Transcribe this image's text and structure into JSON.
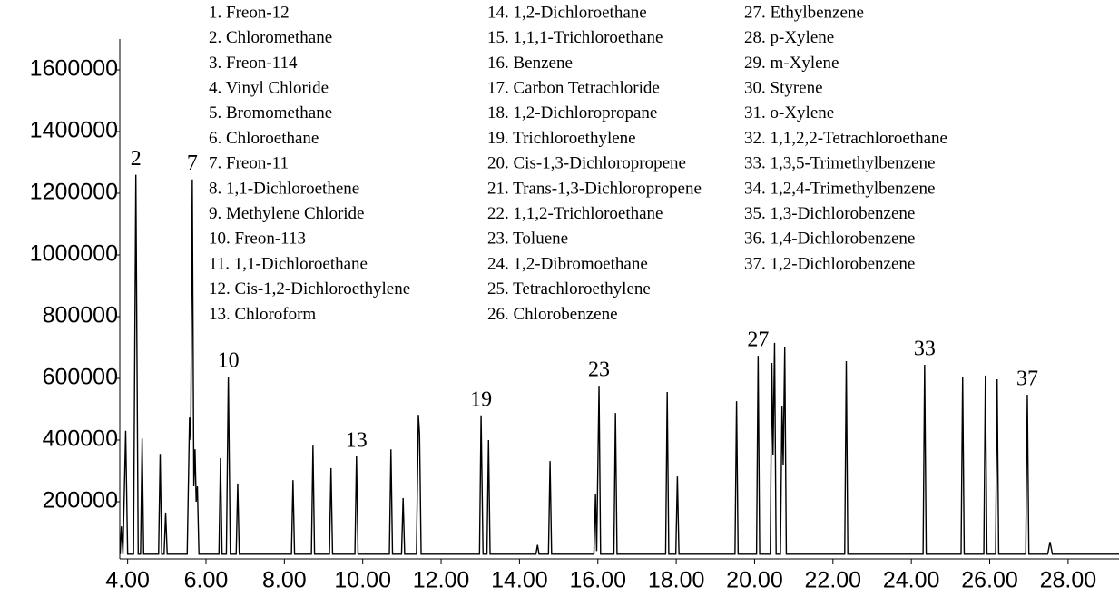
{
  "chart_data": {
    "type": "line",
    "compounds": [
      "1. Freon-12",
      "2. Chloromethane",
      "3. Freon-114",
      "4. Vinyl Chloride",
      "5. Bromomethane",
      "6. Chloroethane",
      "7. Freon-11",
      "8. 1,1-Dichloroethene",
      "9. Methylene Chloride",
      "10. Freon-113",
      "11. 1,1-Dichloroethane",
      "12. Cis-1,2-Dichloroethylene",
      "13. Chloroform",
      "14. 1,2-Dichloroethane",
      "15. 1,1,1-Trichloroethane",
      "16. Benzene",
      "17. Carbon Tetrachloride",
      "18. 1,2-Dichloropropane",
      "19. Trichloroethylene",
      "20. Cis-1,3-Dichloropropene",
      "21. Trans-1,3-Dichloropropene",
      "22. 1,1,2-Trichloroethane",
      "23. Toluene",
      "24. 1,2-Dibromoethane",
      "25. Tetrachloroethylene",
      "26. Chlorobenzene",
      "27. Ethylbenzene",
      "28. p-Xylene",
      "29. m-Xylene",
      "30. Styrene",
      "31. o-Xylene",
      "32. 1,1,2,2-Tetrachloroethane",
      "33. 1,3,5-Trimethylbenzene",
      "34. 1,2,4-Trimethylbenzene",
      "35. 1,3-Dichlorobenzene",
      "36. 1,4-Dichlorobenzene",
      "37. 1,2-Dichlorobenzene"
    ],
    "x": [
      3.81,
      3.84,
      3.88,
      3.95,
      4.0,
      4.15,
      4.21,
      4.27,
      4.33,
      4.37,
      4.41,
      4.79,
      4.83,
      4.87,
      4.93,
      4.97,
      5.01,
      5.52,
      5.58,
      5.61,
      5.65,
      5.69,
      5.72,
      5.75,
      5.78,
      5.82,
      6.33,
      6.37,
      6.41,
      6.52,
      6.57,
      6.62,
      6.77,
      6.81,
      6.85,
      8.18,
      8.22,
      8.26,
      8.69,
      8.73,
      8.77,
      9.15,
      9.19,
      9.23,
      9.8,
      9.84,
      9.88,
      10.68,
      10.72,
      10.76,
      10.99,
      11.03,
      11.07,
      11.37,
      11.42,
      11.45,
      11.49,
      12.98,
      13.02,
      13.07,
      13.17,
      13.21,
      13.25,
      14.42,
      14.46,
      14.5,
      14.74,
      14.78,
      14.82,
      15.9,
      15.94,
      15.97,
      16.03,
      16.07,
      16.41,
      16.45,
      16.49,
      17.73,
      17.77,
      17.81,
      17.99,
      18.03,
      18.07,
      19.5,
      19.54,
      19.58,
      20.05,
      20.09,
      20.13,
      20.4,
      20.44,
      20.47,
      20.51,
      20.55,
      20.66,
      20.7,
      20.73,
      20.77,
      20.81,
      22.3,
      22.34,
      22.38,
      24.3,
      24.34,
      24.38,
      25.27,
      25.31,
      25.35,
      25.85,
      25.89,
      25.93,
      26.15,
      26.19,
      26.23,
      26.92,
      26.96,
      27.0,
      27.48,
      27.54,
      27.6,
      29.3
    ],
    "values": [
      30000,
      120000,
      30000,
      430000,
      30000,
      30000,
      1260000,
      30000,
      30000,
      405000,
      30000,
      30000,
      355000,
      30000,
      30000,
      165000,
      30000,
      30000,
      473000,
      400000,
      1245000,
      250000,
      370000,
      200000,
      250000,
      30000,
      30000,
      341000,
      30000,
      30000,
      606000,
      30000,
      30000,
      259000,
      30000,
      30000,
      270000,
      30000,
      30000,
      382000,
      30000,
      30000,
      309000,
      30000,
      30000,
      347000,
      30000,
      30000,
      370000,
      30000,
      30000,
      212000,
      30000,
      30000,
      482000,
      420000,
      30000,
      30000,
      480000,
      30000,
      30000,
      400000,
      30000,
      30000,
      60000,
      30000,
      30000,
      332000,
      30000,
      30000,
      224000,
      40000,
      576000,
      30000,
      30000,
      488000,
      30000,
      30000,
      556000,
      30000,
      30000,
      282000,
      30000,
      30000,
      526000,
      30000,
      30000,
      673000,
      30000,
      30000,
      650000,
      350000,
      715000,
      30000,
      30000,
      509000,
      320000,
      700000,
      30000,
      30000,
      656000,
      30000,
      30000,
      644000,
      30000,
      30000,
      606000,
      30000,
      30000,
      609000,
      30000,
      30000,
      597000,
      30000,
      30000,
      547000,
      30000,
      30000,
      70000,
      30000,
      30000
    ],
    "color": "#000000",
    "peak_labels": [
      {
        "text": "2",
        "x": 4.21
      },
      {
        "text": "7",
        "x": 5.65
      },
      {
        "text": "10",
        "x": 6.57
      },
      {
        "text": "13",
        "x": 9.84
      },
      {
        "text": "19",
        "x": 13.02
      },
      {
        "text": "23",
        "x": 16.03
      },
      {
        "text": "27",
        "x": 20.09
      },
      {
        "text": "33",
        "x": 24.34
      },
      {
        "text": "37",
        "x": 26.96
      }
    ],
    "xlim": [
      3.8,
      29.3
    ],
    "xticks": [
      {
        "value": 4,
        "label": "4.00"
      },
      {
        "value": 6,
        "label": "6.00"
      },
      {
        "value": 8,
        "label": "8.00"
      },
      {
        "value": 10,
        "label": "10.00"
      },
      {
        "value": 12,
        "label": "12.00"
      },
      {
        "value": 14,
        "label": "14.00"
      },
      {
        "value": 16,
        "label": "16.00"
      },
      {
        "value": 18,
        "label": "18.00"
      },
      {
        "value": 20,
        "label": "20.00"
      },
      {
        "value": 22,
        "label": "22.00"
      },
      {
        "value": 24,
        "label": "24.00"
      },
      {
        "value": 26,
        "label": "26.00"
      },
      {
        "value": 28,
        "label": "28.00"
      }
    ],
    "ylim": [
      0,
      1700000
    ],
    "yticks": [
      200000,
      400000,
      600000,
      800000,
      1000000,
      1200000,
      1400000,
      1600000
    ]
  }
}
